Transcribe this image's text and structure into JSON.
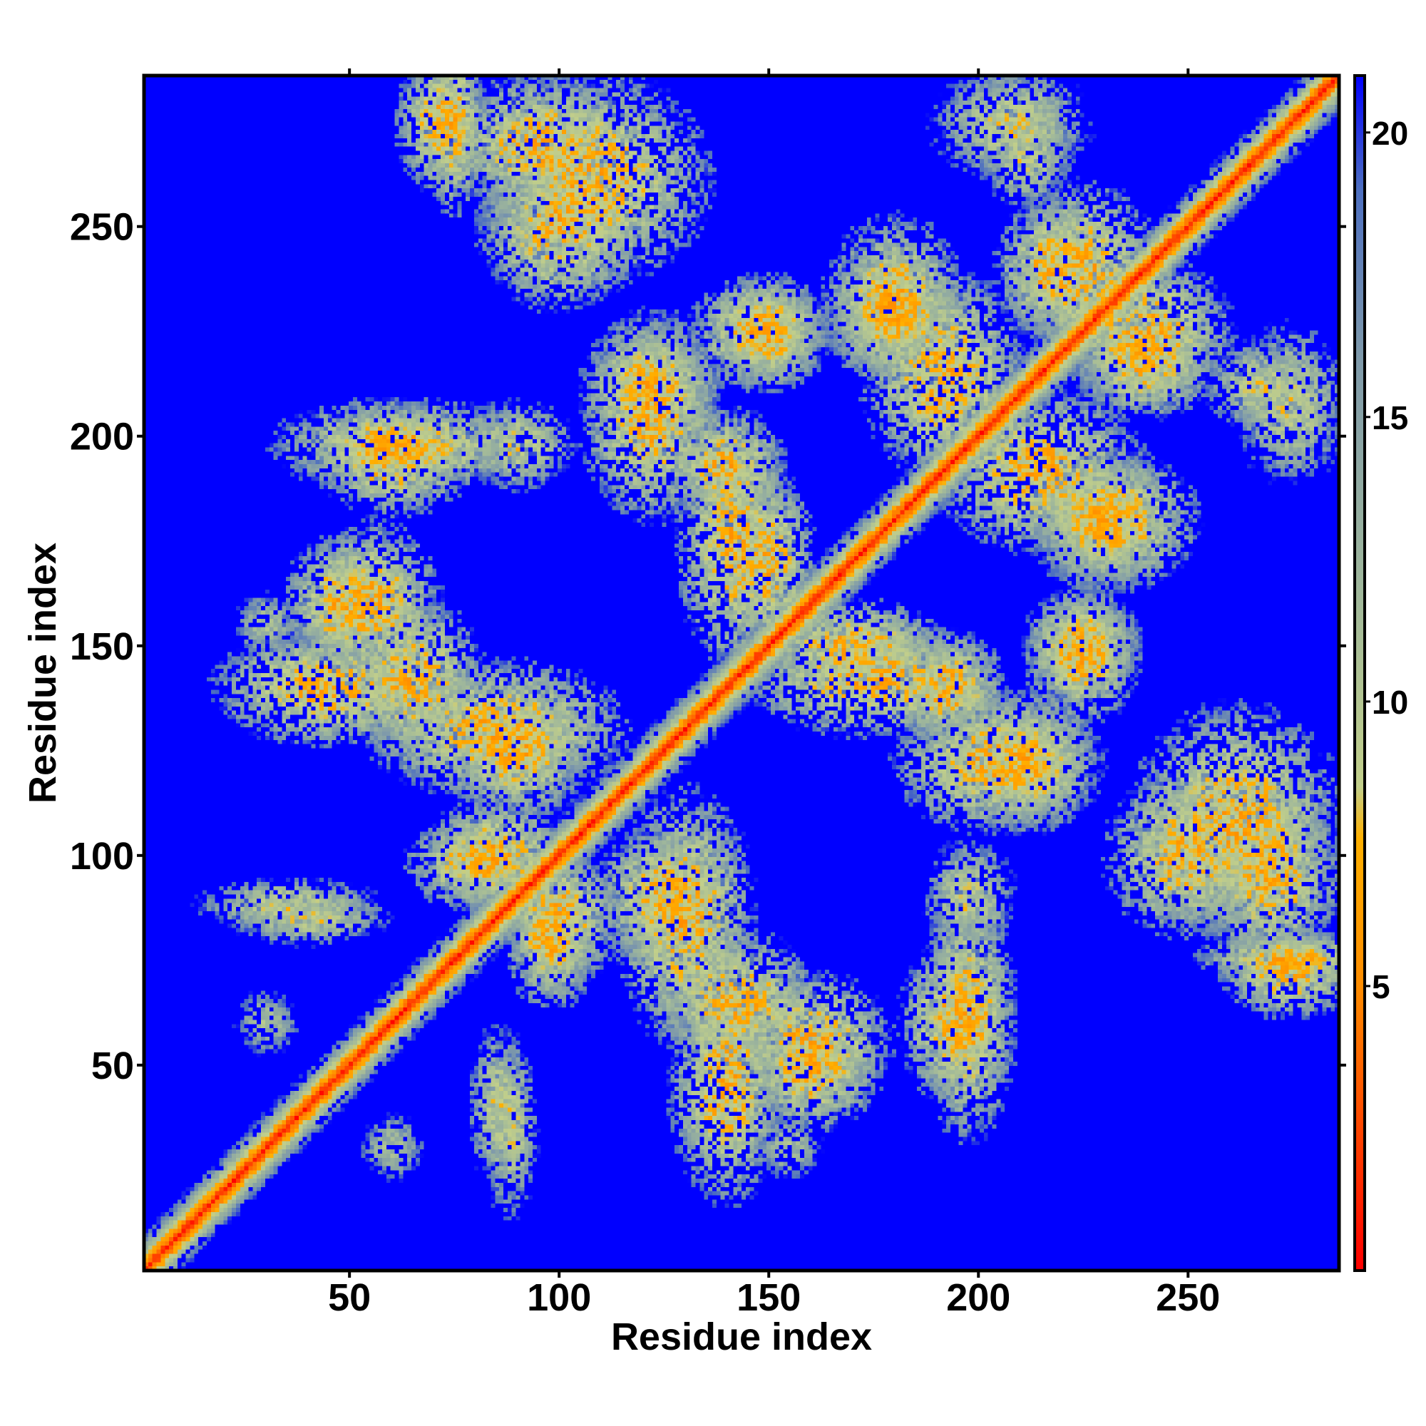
{
  "chart_data": {
    "type": "heatmap",
    "title": "",
    "xlabel": "Residue index",
    "ylabel": "Residue index",
    "xlim": [
      1,
      286
    ],
    "ylim": [
      1,
      286
    ],
    "x_ticks": [
      50,
      100,
      150,
      200,
      250
    ],
    "y_ticks": [
      50,
      100,
      150,
      200,
      250
    ],
    "colorbar": {
      "range": [
        0,
        21
      ],
      "ticks": [
        5,
        10,
        15,
        20
      ],
      "stops": [
        {
          "value": 0,
          "color": "#ff0000"
        },
        {
          "value": 5,
          "color": "#ff8c00"
        },
        {
          "value": 7.6,
          "color": "#ffb000"
        },
        {
          "value": 8.5,
          "color": "#c2cf8a"
        },
        {
          "value": 12,
          "color": "#9fb79b"
        },
        {
          "value": 16,
          "color": "#7f9aaa"
        },
        {
          "value": 19,
          "color": "#4d6fc0"
        },
        {
          "value": 21,
          "color": "#0000ff"
        }
      ]
    },
    "background_value": 21,
    "diagonal": {
      "min_value": 0,
      "halfwidth_residues": 9
    },
    "contact_blobs": [
      {
        "x": 75,
        "y": 275,
        "sx": 5,
        "sy": 16,
        "min": 5
      },
      {
        "x": 108,
        "y": 262,
        "sx": 20,
        "sy": 18,
        "min": 5
      },
      {
        "x": 148,
        "y": 225,
        "sx": 12,
        "sy": 10,
        "min": 5
      },
      {
        "x": 180,
        "y": 232,
        "sx": 12,
        "sy": 15,
        "min": 5
      },
      {
        "x": 208,
        "y": 275,
        "sx": 14,
        "sy": 10,
        "min": 7
      },
      {
        "x": 225,
        "y": 240,
        "sx": 13,
        "sy": 15,
        "min": 5
      },
      {
        "x": 240,
        "y": 218,
        "sx": 12,
        "sy": 10,
        "min": 5
      },
      {
        "x": 268,
        "y": 212,
        "sx": 10,
        "sy": 8,
        "min": 7
      },
      {
        "x": 62,
        "y": 198,
        "sx": 22,
        "sy": 8,
        "min": 5
      },
      {
        "x": 55,
        "y": 160,
        "sx": 12,
        "sy": 14,
        "min": 5
      },
      {
        "x": 45,
        "y": 140,
        "sx": 20,
        "sy": 10,
        "min": 5
      },
      {
        "x": 85,
        "y": 130,
        "sx": 22,
        "sy": 12,
        "min": 5
      },
      {
        "x": 122,
        "y": 205,
        "sx": 12,
        "sy": 18,
        "min": 5
      },
      {
        "x": 142,
        "y": 175,
        "sx": 10,
        "sy": 22,
        "min": 5
      },
      {
        "x": 170,
        "y": 150,
        "sx": 16,
        "sy": 8,
        "min": 5
      },
      {
        "x": 193,
        "y": 140,
        "sx": 10,
        "sy": 10,
        "min": 5
      },
      {
        "x": 215,
        "y": 192,
        "sx": 18,
        "sy": 14,
        "min": 5
      },
      {
        "x": 230,
        "y": 180,
        "sx": 12,
        "sy": 12,
        "min": 5
      },
      {
        "x": 225,
        "y": 150,
        "sx": 10,
        "sy": 10,
        "min": 5
      },
      {
        "x": 212,
        "y": 122,
        "sx": 12,
        "sy": 12,
        "min": 5
      },
      {
        "x": 250,
        "y": 100,
        "sx": 14,
        "sy": 14,
        "min": 5
      },
      {
        "x": 270,
        "y": 95,
        "sx": 12,
        "sy": 16,
        "min": 5
      },
      {
        "x": 275,
        "y": 72,
        "sx": 12,
        "sy": 8,
        "min": 5
      },
      {
        "x": 85,
        "y": 100,
        "sx": 12,
        "sy": 10,
        "min": 5
      },
      {
        "x": 98,
        "y": 80,
        "sx": 8,
        "sy": 12,
        "min": 5
      },
      {
        "x": 125,
        "y": 90,
        "sx": 12,
        "sy": 12,
        "min": 5
      },
      {
        "x": 142,
        "y": 65,
        "sx": 14,
        "sy": 12,
        "min": 5
      },
      {
        "x": 160,
        "y": 48,
        "sx": 12,
        "sy": 10,
        "min": 5
      },
      {
        "x": 195,
        "y": 60,
        "sx": 10,
        "sy": 14,
        "min": 5
      },
      {
        "x": 198,
        "y": 90,
        "sx": 8,
        "sy": 10,
        "min": 7
      },
      {
        "x": 85,
        "y": 40,
        "sx": 5,
        "sy": 14,
        "min": 7
      },
      {
        "x": 35,
        "y": 88,
        "sx": 16,
        "sy": 5,
        "min": 7
      },
      {
        "x": 155,
        "y": 30,
        "sx": 6,
        "sy": 6,
        "min": 9
      },
      {
        "x": 60,
        "y": 30,
        "sx": 6,
        "sy": 6,
        "min": 9
      }
    ]
  }
}
